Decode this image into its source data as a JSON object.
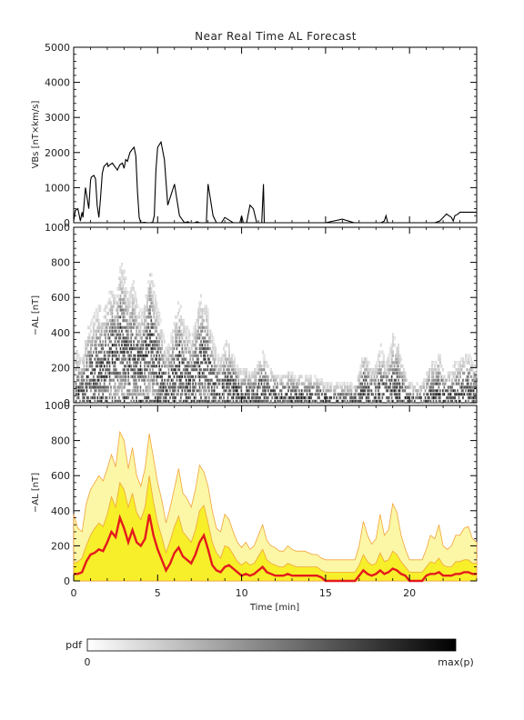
{
  "title": "Near Real Time AL Forecast",
  "colors": {
    "band_outer": "#fbf7a6",
    "band_mid": "#f6ef2a",
    "band_edge": "#f3a23a",
    "median": "#e41a1c",
    "axis": "#000000"
  },
  "chart_data": [
    {
      "type": "line",
      "panel": "top",
      "ylabel": "VBs [nT×km/s]",
      "xlim": [
        0,
        24
      ],
      "ylim": [
        0,
        5000
      ],
      "yticks": [
        "0",
        "1000",
        "2000",
        "3000",
        "4000",
        "5000"
      ],
      "series": [
        {
          "x": [
            0,
            0.1,
            0.25,
            0.4,
            0.5,
            0.55,
            0.7,
            0.8,
            0.9,
            1.0,
            1.05,
            1.2,
            1.3,
            1.4,
            1.5,
            1.6,
            1.7,
            1.8,
            1.9,
            2.0,
            2.05,
            2.15,
            2.3,
            2.45,
            2.6,
            2.75,
            2.9,
            3.0,
            3.1,
            3.2,
            3.35,
            3.5,
            3.6,
            3.7,
            3.8,
            3.9,
            4.0,
            4.2,
            4.4,
            4.55,
            4.7,
            4.8,
            4.9,
            5.0,
            5.2,
            5.4,
            5.6,
            6.0,
            6.3,
            6.6,
            6.8,
            6.9,
            7.0,
            7.1,
            7.2,
            7.35,
            7.5,
            7.6,
            7.7,
            7.8,
            7.9,
            8.0,
            8.3,
            8.5,
            8.8,
            9.0,
            9.5,
            9.9,
            10.0,
            10.1,
            10.3,
            10.5,
            10.7,
            10.9,
            11.2,
            11.3,
            11.35,
            11.4,
            11.5,
            11.55,
            11.6,
            11.7,
            11.75,
            11.8,
            11.85,
            11.95,
            12.2,
            12.4,
            12.6,
            12.8,
            13.0,
            14.0,
            15.0,
            16.0,
            16.7,
            17.0,
            18.0,
            18.2,
            18.3,
            18.5,
            18.6,
            18.7,
            18.9,
            19.0,
            19.5,
            20.0,
            21.0,
            21.5,
            21.8,
            22.0,
            22.2,
            22.5,
            22.6,
            22.7,
            22.9,
            23.0,
            23.5,
            24.0
          ],
          "y": [
            50,
            350,
            400,
            50,
            300,
            150,
            1000,
            700,
            400,
            1200,
            1300,
            1350,
            1250,
            500,
            150,
            700,
            1400,
            1600,
            1650,
            1700,
            1600,
            1650,
            1700,
            1600,
            1500,
            1650,
            1700,
            1550,
            1800,
            1750,
            2000,
            2100,
            2150,
            1900,
            900,
            150,
            0,
            10,
            0,
            0,
            10,
            200,
            1500,
            2150,
            2300,
            1800,
            500,
            1100,
            200,
            0,
            30,
            0,
            0,
            0,
            0,
            30,
            0,
            0,
            0,
            0,
            0,
            1100,
            200,
            0,
            0,
            150,
            0,
            0,
            200,
            0,
            0,
            500,
            400,
            0,
            0,
            1100,
            0,
            0,
            0,
            0,
            0,
            0,
            0,
            0,
            0,
            0,
            0,
            0,
            0,
            0,
            0,
            0,
            0,
            100,
            0,
            0,
            0,
            0,
            0,
            50,
            200,
            0,
            0,
            0,
            0,
            0,
            0,
            0,
            50,
            150,
            250,
            150,
            50,
            200,
            250,
            300,
            300,
            300
          ]
        }
      ]
    },
    {
      "type": "heatmap",
      "panel": "middle",
      "ylabel": "−AL [nT]",
      "xlim": [
        0,
        24
      ],
      "ylim": [
        0,
        1000
      ],
      "yticks": [
        "0",
        "200",
        "400",
        "600",
        "800",
        "1000"
      ],
      "colorbar": {
        "label": "pdf",
        "min_label": "0",
        "max_label": "max(p)"
      }
    },
    {
      "type": "area",
      "panel": "bottom",
      "ylabel": "−AL [nT]",
      "xlabel": "Time [min]",
      "xlim": [
        0,
        24
      ],
      "ylim": [
        0,
        1000
      ],
      "xticks": [
        "0",
        "5",
        "10",
        "15",
        "20"
      ],
      "yticks": [
        "0",
        "200",
        "400",
        "600",
        "800",
        "1000"
      ],
      "x": [
        0.0,
        0.25,
        0.5,
        0.75,
        1.0,
        1.25,
        1.5,
        1.75,
        2.0,
        2.25,
        2.5,
        2.75,
        3.0,
        3.25,
        3.5,
        3.75,
        4.0,
        4.25,
        4.5,
        4.75,
        5.0,
        5.25,
        5.5,
        5.75,
        6.0,
        6.25,
        6.5,
        6.75,
        7.0,
        7.25,
        7.5,
        7.75,
        8.0,
        8.25,
        8.5,
        8.75,
        9.0,
        9.25,
        9.5,
        9.75,
        10.0,
        10.25,
        10.5,
        10.75,
        11.0,
        11.25,
        11.5,
        11.75,
        12.0,
        12.25,
        12.5,
        12.75,
        13.0,
        13.25,
        13.5,
        13.75,
        14.0,
        14.25,
        14.5,
        14.75,
        15.0,
        15.25,
        15.5,
        15.75,
        16.0,
        16.25,
        16.5,
        16.75,
        17.0,
        17.25,
        17.5,
        17.75,
        18.0,
        18.25,
        18.5,
        18.75,
        19.0,
        19.25,
        19.5,
        19.75,
        20.0,
        20.25,
        20.5,
        20.75,
        21.0,
        21.25,
        21.5,
        21.75,
        22.0,
        22.25,
        22.5,
        22.75,
        23.0,
        23.25,
        23.5,
        23.75,
        24.0
      ],
      "median": [
        40,
        40,
        50,
        110,
        150,
        160,
        180,
        170,
        220,
        280,
        250,
        360,
        300,
        220,
        290,
        220,
        200,
        240,
        380,
        260,
        180,
        120,
        60,
        100,
        160,
        190,
        140,
        120,
        100,
        150,
        220,
        260,
        180,
        90,
        60,
        50,
        80,
        90,
        70,
        50,
        30,
        40,
        30,
        40,
        60,
        80,
        50,
        40,
        30,
        30,
        30,
        40,
        30,
        30,
        30,
        30,
        30,
        30,
        30,
        20,
        0,
        0,
        0,
        0,
        0,
        0,
        0,
        0,
        30,
        60,
        40,
        30,
        40,
        60,
        40,
        50,
        70,
        60,
        40,
        30,
        0,
        0,
        0,
        0,
        30,
        40,
        40,
        50,
        30,
        30,
        30,
        40,
        40,
        50,
        50,
        40,
        40
      ],
      "band_inner": [
        100,
        110,
        130,
        200,
        260,
        300,
        330,
        310,
        380,
        480,
        420,
        560,
        520,
        420,
        500,
        390,
        350,
        420,
        600,
        450,
        330,
        250,
        160,
        230,
        310,
        370,
        280,
        250,
        220,
        290,
        400,
        430,
        330,
        220,
        160,
        130,
        200,
        190,
        150,
        110,
        90,
        110,
        90,
        100,
        140,
        180,
        120,
        100,
        90,
        80,
        80,
        100,
        90,
        80,
        80,
        80,
        80,
        80,
        80,
        60,
        50,
        50,
        50,
        50,
        50,
        50,
        50,
        50,
        90,
        150,
        110,
        90,
        100,
        160,
        110,
        120,
        170,
        150,
        110,
        80,
        50,
        50,
        50,
        50,
        80,
        110,
        100,
        130,
        90,
        80,
        80,
        110,
        110,
        120,
        120,
        100,
        100
      ],
      "band_outer": [
        380,
        300,
        280,
        440,
        520,
        560,
        600,
        570,
        640,
        720,
        650,
        850,
        800,
        640,
        760,
        600,
        540,
        640,
        840,
        700,
        560,
        460,
        330,
        420,
        530,
        640,
        500,
        470,
        420,
        520,
        660,
        620,
        540,
        400,
        300,
        280,
        380,
        350,
        280,
        220,
        190,
        220,
        180,
        200,
        260,
        320,
        230,
        200,
        190,
        170,
        170,
        200,
        180,
        170,
        170,
        170,
        160,
        150,
        150,
        130,
        120,
        120,
        120,
        120,
        120,
        120,
        120,
        120,
        200,
        340,
        260,
        210,
        240,
        380,
        260,
        290,
        440,
        390,
        260,
        180,
        120,
        120,
        120,
        120,
        180,
        260,
        240,
        320,
        200,
        180,
        200,
        260,
        260,
        300,
        310,
        240,
        220
      ]
    }
  ]
}
